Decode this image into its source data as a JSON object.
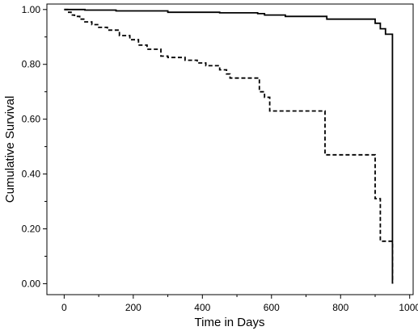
{
  "chart_data": {
    "type": "line",
    "subtype": "kaplan-meier step",
    "xlabel": "Time in Days",
    "ylabel": "Cumulative Survival",
    "xlim": [
      -50,
      1010
    ],
    "ylim": [
      -0.04,
      1.02
    ],
    "xticks": [
      0,
      200,
      400,
      600,
      800,
      1000
    ],
    "xtick_labels": [
      "0",
      "200",
      "400",
      "600",
      "800",
      "1000"
    ],
    "yticks": [
      0,
      0.2,
      0.4,
      0.6,
      0.8,
      1.0
    ],
    "ytick_labels": [
      "0.00",
      "0.20",
      "0.40",
      "0.60",
      "0.80",
      "1.00"
    ],
    "grid": false,
    "legend": false,
    "series": [
      {
        "style": "solid",
        "color": "#000000",
        "x": [
          0,
          60,
          150,
          300,
          450,
          560,
          580,
          640,
          760,
          900,
          915,
          930,
          950,
          950
        ],
        "y": [
          1.0,
          0.998,
          0.995,
          0.99,
          0.988,
          0.985,
          0.98,
          0.975,
          0.965,
          0.95,
          0.93,
          0.91,
          0.91,
          0.0
        ]
      },
      {
        "style": "dashed",
        "color": "#000000",
        "x": [
          0,
          10,
          20,
          30,
          45,
          60,
          80,
          100,
          125,
          160,
          190,
          215,
          240,
          280,
          300,
          350,
          385,
          410,
          450,
          470,
          480,
          565,
          580,
          595,
          650,
          755,
          900,
          915,
          930,
          950,
          950
        ],
        "y": [
          1.0,
          0.99,
          0.98,
          0.975,
          0.965,
          0.955,
          0.945,
          0.935,
          0.925,
          0.905,
          0.89,
          0.87,
          0.855,
          0.83,
          0.825,
          0.815,
          0.805,
          0.795,
          0.78,
          0.765,
          0.75,
          0.7,
          0.68,
          0.63,
          0.63,
          0.47,
          0.31,
          0.155,
          0.155,
          0.155,
          0.0
        ]
      }
    ]
  }
}
